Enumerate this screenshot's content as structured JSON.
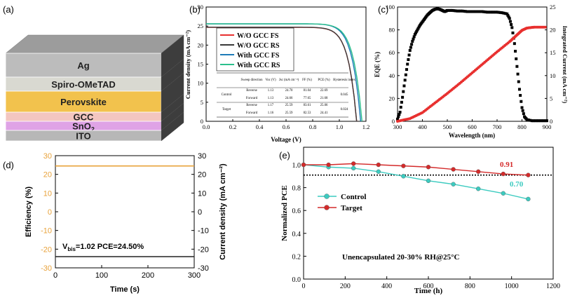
{
  "panel_labels": {
    "a": "(a)",
    "b": "(b)",
    "c": "(c)",
    "d": "(d)",
    "e": "(e)"
  },
  "stack": {
    "layers": [
      {
        "name": "Ag",
        "color": "#bcbcbc"
      },
      {
        "name": "Spiro-OMeTAD",
        "color": "#d9d9d1"
      },
      {
        "name": "Perovskite",
        "color": "#f2c24d"
      },
      {
        "name": "GCC",
        "color": "#f3c6c0"
      },
      {
        "name": "SnO",
        "sub": "2",
        "color": "#dfa3e6"
      },
      {
        "name": "ITO",
        "color": "#b7b7b7"
      }
    ],
    "top_color": "#9c9c9c"
  },
  "chart_data": [
    {
      "id": "b",
      "type": "line",
      "xlabel": "Voltage (V)",
      "ylabel": "Current density (mA cm⁻²)",
      "xlim": [
        0,
        1.2
      ],
      "ylim": [
        0,
        30
      ],
      "xticks": [
        "0.0",
        "0.2",
        "0.4",
        "0.6",
        "0.8",
        "1.0",
        "1.2"
      ],
      "yticks": [
        "0",
        "5",
        "10",
        "15",
        "20",
        "25",
        "30"
      ],
      "series": [
        {
          "name": "W/O GCC FS",
          "color": "#e8302f",
          "jsc": 24.66,
          "voc": 1.13
        },
        {
          "name": "W/O GCC RS",
          "color": "#3a3a3a",
          "jsc": 24.7,
          "voc": 1.13
        },
        {
          "name": "With GCC FS",
          "color": "#1e7bb8",
          "jsc": 25.59,
          "voc": 1.16
        },
        {
          "name": "With GCC RS",
          "color": "#2bbf8c",
          "jsc": 25.59,
          "voc": 1.17
        }
      ],
      "table": {
        "headers": [
          "",
          "Sweep direction",
          "Voc (V)",
          "Jsc (mA cm⁻²)",
          "FF (%)",
          "PCE (%)",
          "Hysteresis index"
        ],
        "rows": [
          [
            "Control",
            "Reverse",
            "1.13",
            "24.70",
            "81.04",
            "22.69",
            "0.045"
          ],
          [
            "",
            "Forward",
            "1.13",
            "24.66",
            "77.65",
            "21.68",
            ""
          ],
          [
            "Target",
            "Reverse",
            "1.17",
            "25.59",
            "83.61",
            "25.06",
            "0.024"
          ],
          [
            "",
            "Forward",
            "1.16",
            "25.59",
            "82.53",
            "24.41",
            ""
          ]
        ]
      }
    },
    {
      "id": "c",
      "type": "scatter",
      "xlabel": "Wavelength (nm)",
      "ylabel": "EQE (%)",
      "y2label": "Integrated Current (mA cm⁻²)",
      "xlim": [
        300,
        900
      ],
      "ylim": [
        0,
        100
      ],
      "y2lim": [
        0,
        25
      ],
      "xticks": [
        "300",
        "400",
        "500",
        "600",
        "700",
        "800",
        "900"
      ],
      "yticks": [
        "0",
        "20",
        "40",
        "60",
        "80",
        "100"
      ],
      "y2ticks": [
        "0",
        "5",
        "10",
        "15",
        "20",
        "25"
      ],
      "series": [
        {
          "name": "EQE",
          "color": "#000000",
          "x": [
            300,
            310,
            320,
            330,
            340,
            350,
            360,
            370,
            380,
            390,
            400,
            410,
            420,
            430,
            440,
            450,
            460,
            470,
            480,
            490,
            500,
            520,
            540,
            560,
            580,
            600,
            620,
            640,
            660,
            680,
            700,
            720,
            740,
            750,
            760,
            770,
            780,
            790,
            800,
            810,
            820,
            840,
            860,
            880,
            900
          ],
          "y": [
            2,
            8,
            21,
            36,
            50,
            62,
            70,
            76,
            80,
            84,
            87,
            90,
            93,
            95,
            97,
            98,
            98.5,
            98,
            97,
            96,
            97,
            97,
            96.5,
            96.5,
            96,
            96,
            96,
            96,
            95.5,
            95.5,
            95.5,
            95,
            94,
            90,
            82,
            68,
            48,
            28,
            12,
            4,
            1.5,
            0.5,
            0.5,
            0.5,
            0.5
          ]
        },
        {
          "name": "Integrated Current",
          "color": "#e8302f",
          "axis": "right",
          "x": [
            300,
            350,
            400,
            450,
            500,
            550,
            600,
            650,
            700,
            750,
            780,
            800,
            820,
            850,
            900
          ],
          "y": [
            0,
            0.6,
            1.9,
            4.0,
            6.1,
            8.3,
            10.6,
            12.9,
            15.2,
            17.4,
            18.9,
            19.9,
            20.4,
            20.6,
            20.6
          ]
        }
      ]
    },
    {
      "id": "d",
      "type": "line",
      "xlabel": "Time (s)",
      "ylabel": "Efficiency (%)",
      "y2label": "Current density (mA cm⁻²)",
      "xlim": [
        0,
        300
      ],
      "ylim": [
        -30,
        30
      ],
      "y2lim": [
        -30,
        30
      ],
      "xticks": [
        "0",
        "100",
        "200",
        "300"
      ],
      "yticks": [
        "-30",
        "-20",
        "-10",
        "0",
        "10",
        "20",
        "30"
      ],
      "annotation": {
        "vbis_prefix": "V",
        "vbis_sub": "bis",
        "text": "=1.02  PCE=24.50%"
      },
      "series": [
        {
          "name": "Efficiency",
          "color": "#e8a23a",
          "axis": "left",
          "x": [
            0,
            300
          ],
          "y": [
            24.5,
            24.5
          ]
        },
        {
          "name": "Current density",
          "color": "#222222",
          "axis": "right",
          "x": [
            0,
            300
          ],
          "y": [
            -24.0,
            -24.0
          ]
        }
      ]
    },
    {
      "id": "e",
      "type": "line",
      "xlabel": "Time (h)",
      "ylabel": "Normalized PCE",
      "xlim": [
        0,
        1200
      ],
      "ylim": [
        0.0,
        1.0
      ],
      "xticks": [
        "0",
        "200",
        "400",
        "600",
        "800",
        "1000",
        "1200"
      ],
      "yticks": [
        "0.0",
        "0.2",
        "0.4",
        "0.6",
        "0.8",
        "1.0"
      ],
      "reference_line": 0.91,
      "annotations": {
        "target_end": "0.91",
        "control_end": "0.70",
        "condition": "Unencapsulated 20-30% RH@25°C"
      },
      "series": [
        {
          "name": "Control",
          "color": "#3ccbc0",
          "x": [
            0,
            120,
            240,
            360,
            480,
            600,
            720,
            840,
            960,
            1080
          ],
          "y": [
            1.0,
            0.98,
            0.97,
            0.94,
            0.9,
            0.86,
            0.83,
            0.79,
            0.75,
            0.7
          ]
        },
        {
          "name": "Target",
          "color": "#d42a2a",
          "x": [
            0,
            120,
            240,
            360,
            480,
            600,
            720,
            840,
            960,
            1080
          ],
          "y": [
            1.0,
            1.0,
            1.01,
            1.0,
            0.99,
            0.98,
            0.96,
            0.94,
            0.92,
            0.91
          ]
        }
      ]
    }
  ]
}
